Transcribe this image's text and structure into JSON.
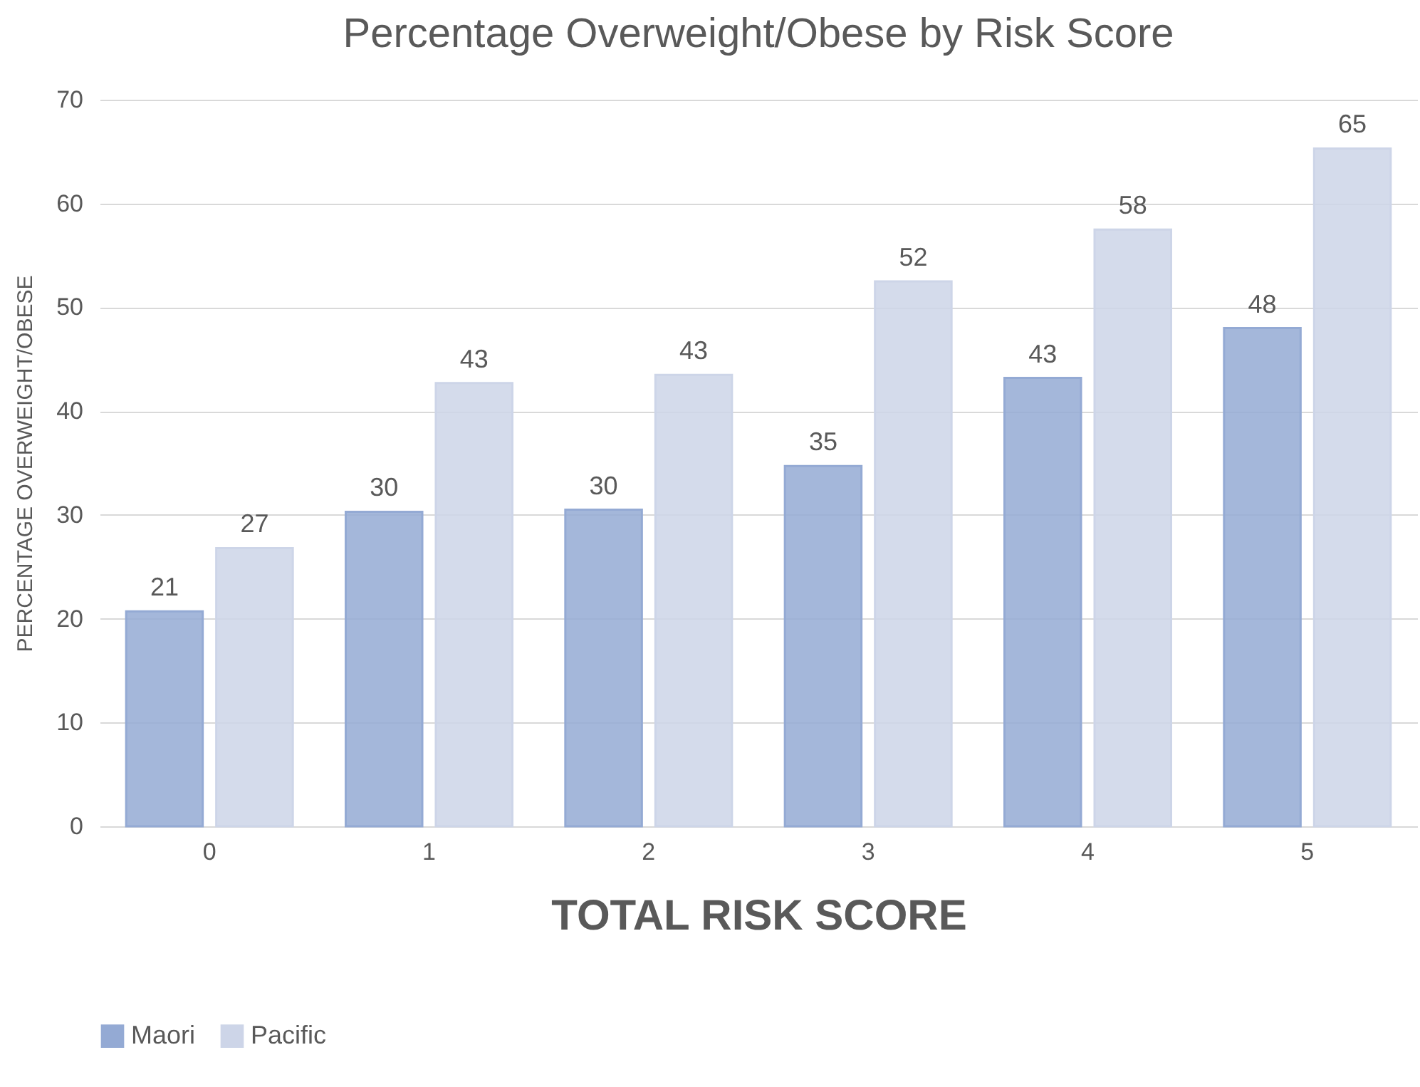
{
  "chart_data": {
    "type": "bar",
    "title": "Percentage Overweight/Obese by Risk Score",
    "xlabel": "TOTAL RISK SCORE",
    "ylabel": "PERCENTAGE OVERWEIGHT/OBESE",
    "categories": [
      "0",
      "1",
      "2",
      "3",
      "4",
      "5"
    ],
    "series": [
      {
        "name": "Maori",
        "color": "#94aad4",
        "values": [
          20.7,
          30.3,
          30.5,
          34.7,
          43.2,
          48.0
        ],
        "value_labels": [
          "21",
          "30",
          "30",
          "35",
          "43",
          "48"
        ]
      },
      {
        "name": "Pacific",
        "color": "#cdd5e8",
        "values": [
          26.8,
          42.7,
          43.5,
          52.5,
          57.5,
          65.3
        ],
        "value_labels": [
          "27",
          "43",
          "43",
          "52",
          "58",
          "65"
        ]
      }
    ],
    "ylim": [
      0,
      70
    ],
    "yticks": [
      0,
      10,
      20,
      30,
      40,
      50,
      60,
      70
    ],
    "grid": "y",
    "legend": "bottom"
  }
}
